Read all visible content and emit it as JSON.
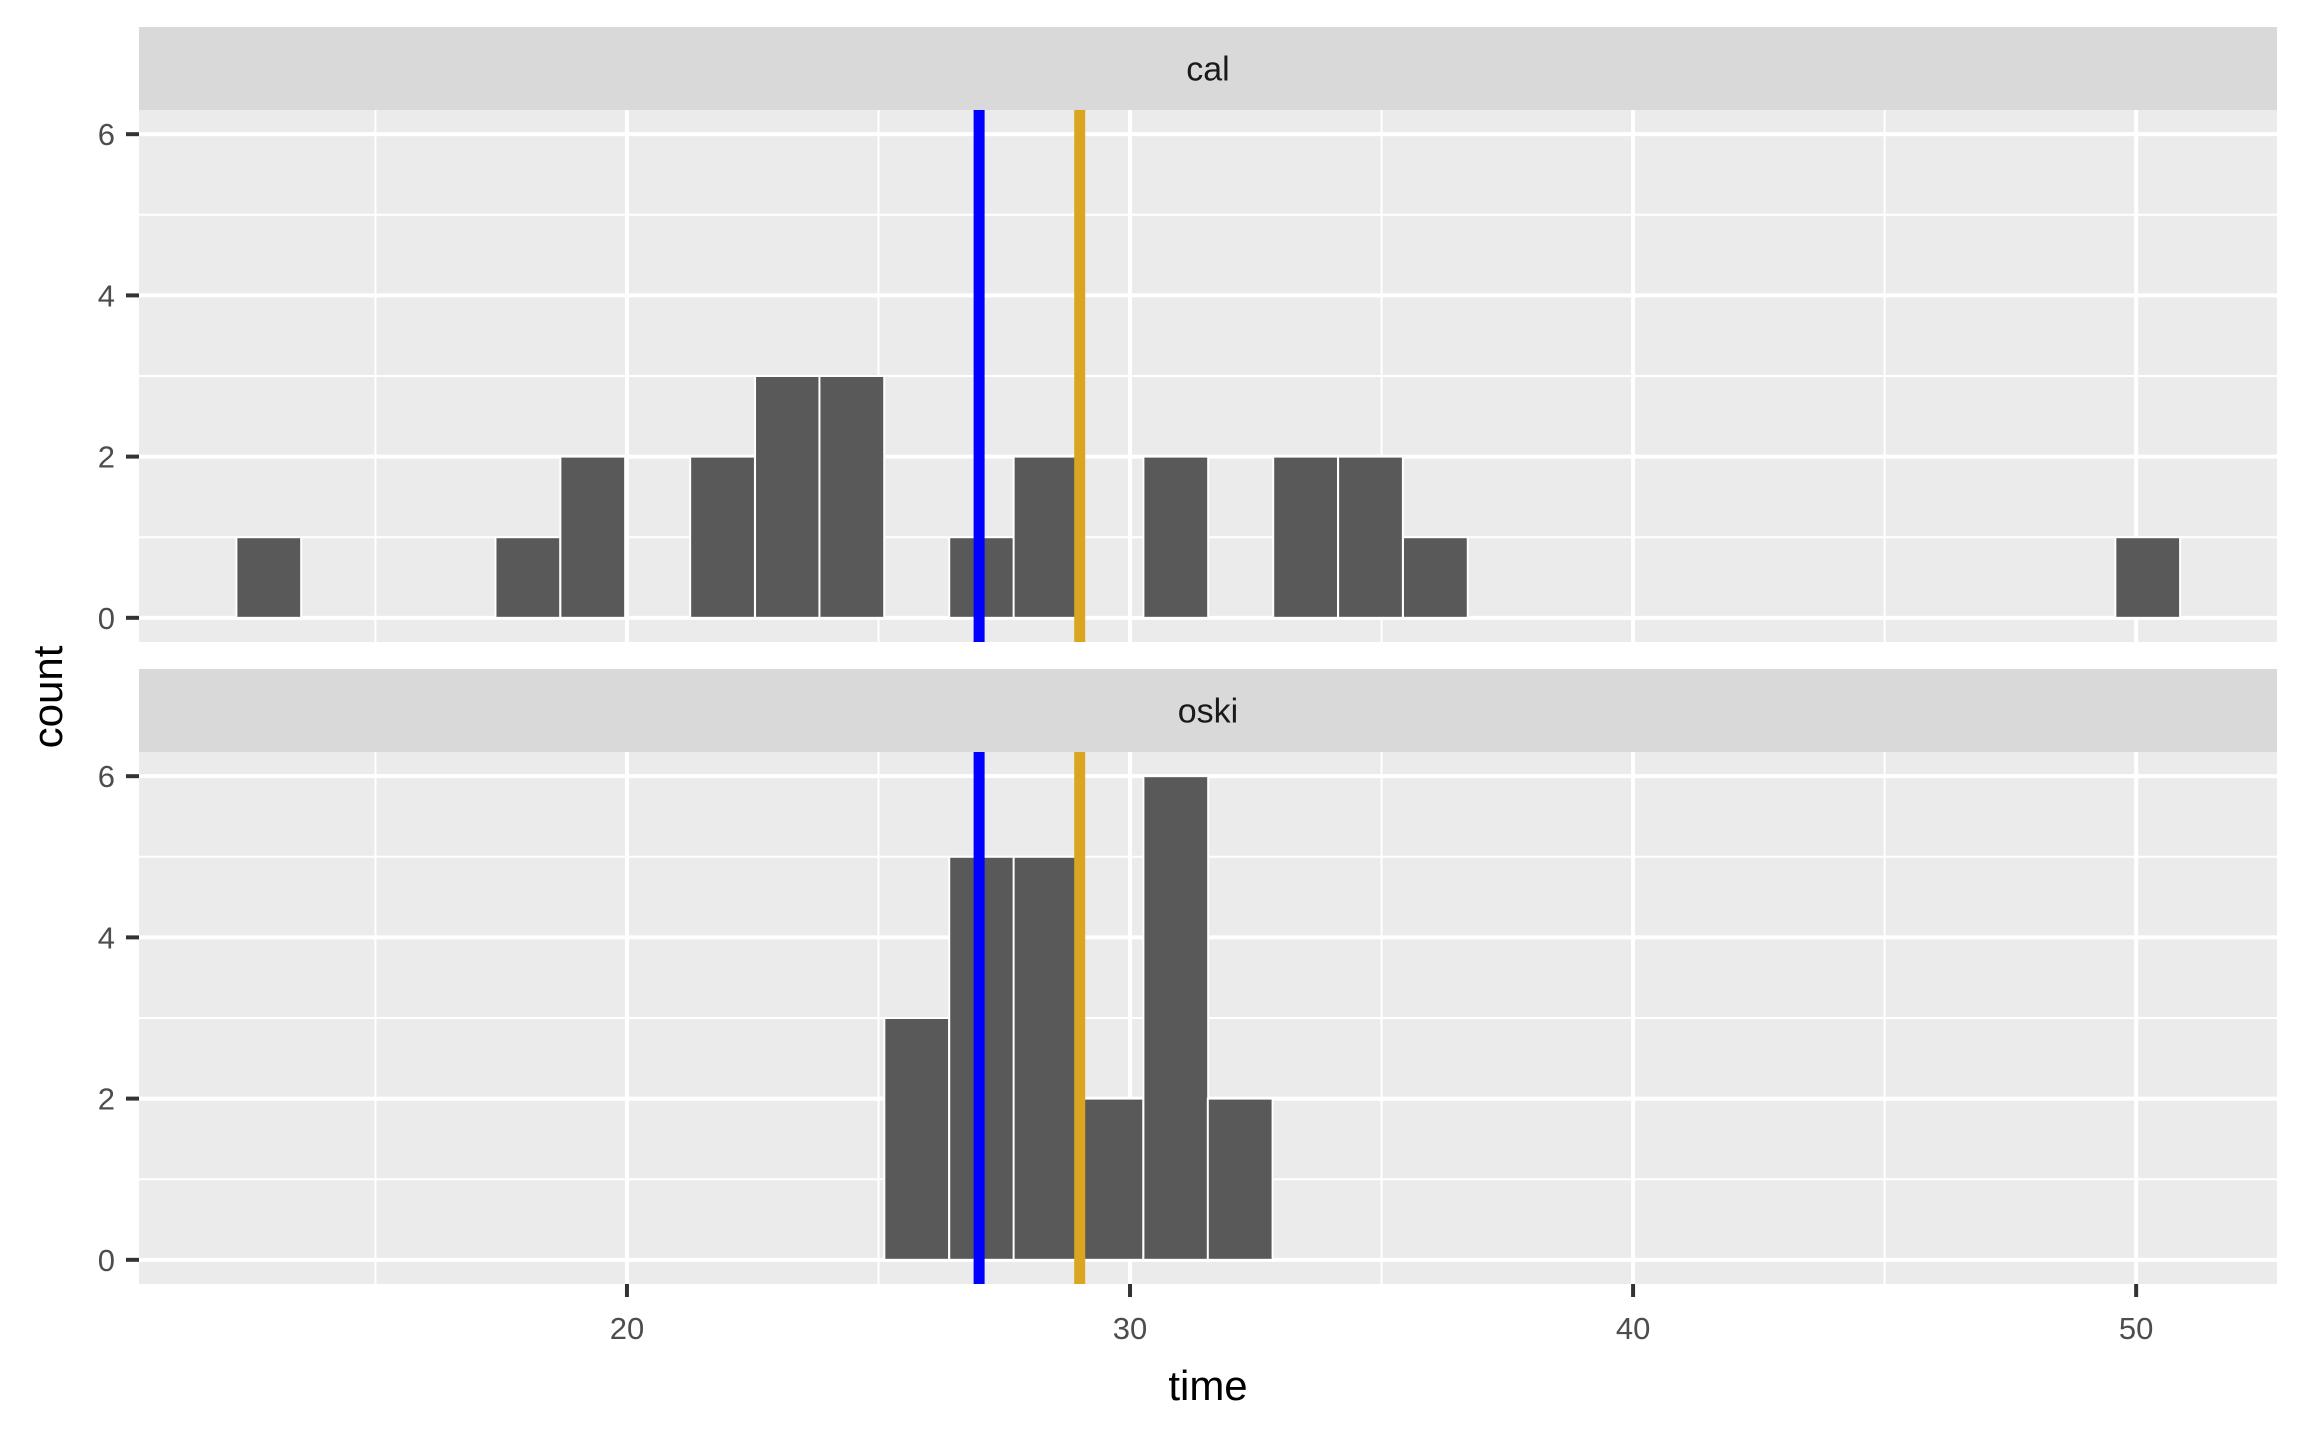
{
  "chart_data": {
    "type": "bar",
    "subtype": "faceted-histogram",
    "title": "",
    "xlabel": "time",
    "ylabel": "count",
    "xlim": [
      10.3,
      52.8
    ],
    "ylim": [
      -0.3,
      6.3
    ],
    "x_ticks": [
      20,
      30,
      40,
      50
    ],
    "x_minor_gridlines": [
      15,
      25,
      35,
      45
    ],
    "y_ticks": [
      0,
      2,
      4,
      6
    ],
    "y_minor_gridlines": [
      1,
      3,
      5
    ],
    "grid": true,
    "legend": "none",
    "bin_width": 1.288,
    "bar_fill": "#595959",
    "bar_outline": "#ffffff",
    "reference_lines": [
      {
        "name": "blue-line",
        "x": 27.0,
        "color": "#0000ff"
      },
      {
        "name": "gold-line",
        "x": 29.0,
        "color": "#daa520"
      }
    ],
    "facets": [
      {
        "label": "cal",
        "bins": [
          {
            "x": 12.88,
            "count": 1
          },
          {
            "x": 18.03,
            "count": 1
          },
          {
            "x": 19.32,
            "count": 2
          },
          {
            "x": 21.9,
            "count": 2
          },
          {
            "x": 23.19,
            "count": 3
          },
          {
            "x": 24.47,
            "count": 3
          },
          {
            "x": 27.05,
            "count": 1
          },
          {
            "x": 28.33,
            "count": 2
          },
          {
            "x": 30.91,
            "count": 2
          },
          {
            "x": 33.49,
            "count": 2
          },
          {
            "x": 34.78,
            "count": 2
          },
          {
            "x": 36.07,
            "count": 1
          },
          {
            "x": 50.23,
            "count": 1
          }
        ]
      },
      {
        "label": "oski",
        "bins": [
          {
            "x": 25.76,
            "count": 3
          },
          {
            "x": 27.05,
            "count": 5
          },
          {
            "x": 28.33,
            "count": 5
          },
          {
            "x": 29.62,
            "count": 2
          },
          {
            "x": 30.91,
            "count": 6
          },
          {
            "x": 32.19,
            "count": 2
          }
        ]
      }
    ]
  },
  "colors": {
    "panel_background": "#ebebeb",
    "strip_background": "#d9d9d9",
    "gridline": "#ffffff",
    "tick_mark": "#333333",
    "tick_label": "#4d4d4d"
  }
}
